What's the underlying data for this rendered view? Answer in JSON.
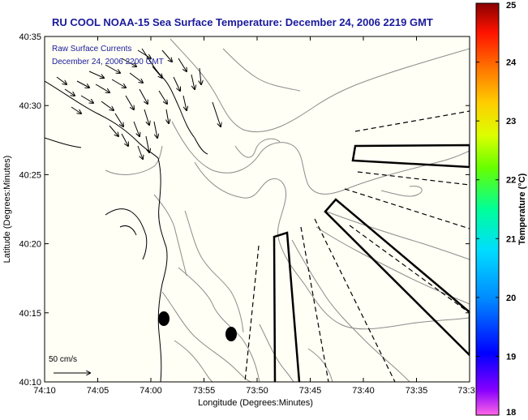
{
  "title": "RU COOL  NOAA-15  Sea Surface Temperature:  December 24, 2006 2219 GMT",
  "legend": {
    "line1": "Raw Surface Currents",
    "line2": "December 24, 2006 2200 GMT"
  },
  "xlabel": "Longitude (Degrees:Minutes)",
  "ylabel": "Latitude (Degrees:Minutes)",
  "x_ticks": [
    "74:10",
    "74:05",
    "74:00",
    "73:55",
    "73:50",
    "73:45",
    "73:40",
    "73:35",
    "73:3"
  ],
  "y_ticks": [
    "40:35",
    "40:30",
    "40:25",
    "40:20",
    "40:15",
    "40:10"
  ],
  "scale_label": "50 cm/s",
  "colorbar": {
    "label": "Temperature (°C)",
    "ticks": [
      "25",
      "24",
      "23",
      "22",
      "21",
      "20",
      "19",
      "18"
    ],
    "min": 18,
    "max": 25
  },
  "colors": {
    "title": "#1a1a9c",
    "land": "#fffff5",
    "coast": "#000000",
    "contour": "#8c8c8c"
  },
  "chart_data": {
    "type": "map",
    "xlim_deg_min": [
      "74:10",
      "73:30"
    ],
    "ylim_deg_min": [
      "40:10",
      "40:35"
    ],
    "markers": [
      {
        "lon": "73:59",
        "lat": "40:14.7",
        "shape": "filled-ellipse"
      },
      {
        "lon": "73:52.5",
        "lat": "40:13.5",
        "shape": "filled-ellipse"
      }
    ],
    "colorbar_range": [
      18,
      25
    ]
  }
}
